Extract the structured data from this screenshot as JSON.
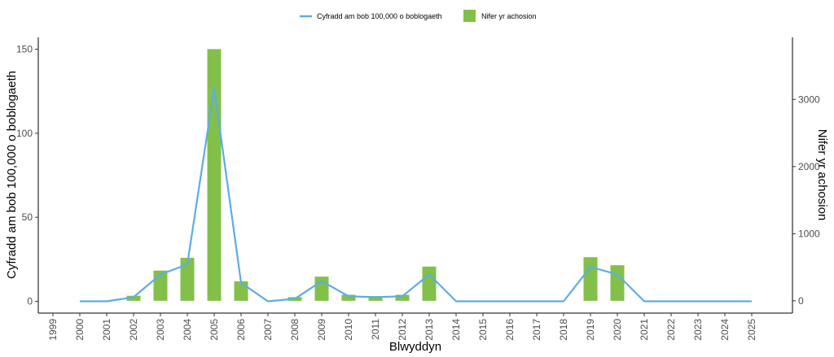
{
  "chart_data": {
    "type": "bar+line",
    "colors": {
      "bars": "#82c04a",
      "line": "#5dade2",
      "axis": "#000000"
    },
    "categories": [
      "1999",
      "2000",
      "2001",
      "2002",
      "2003",
      "2004",
      "2005",
      "2006",
      "2007",
      "2008",
      "2009",
      "2010",
      "2011",
      "2012",
      "2013",
      "2014",
      "2015",
      "2016",
      "2017",
      "2018",
      "2019",
      "2020",
      "2021",
      "2022",
      "2023",
      "2024",
      "2025"
    ],
    "series": [
      {
        "name": "Nifer yr achosion",
        "kind": "bar",
        "axis": "right",
        "values": [
          0,
          0,
          0,
          75,
          450,
          640,
          3750,
          290,
          0,
          55,
          360,
          90,
          70,
          90,
          510,
          0,
          0,
          0,
          0,
          0,
          650,
          530,
          0,
          0,
          0,
          0,
          0
        ]
      },
      {
        "name": "Cyfradd am bob 100,000 o boblogaeth",
        "kind": "line",
        "axis": "left",
        "values": [
          null,
          0,
          0,
          2.5,
          16,
          22,
          127,
          11,
          0,
          1.5,
          12,
          3,
          2.5,
          3,
          16,
          0,
          0,
          0,
          0,
          0,
          20.5,
          16,
          0,
          0,
          0,
          0,
          0
        ]
      }
    ],
    "xlabel": "Blwyddyn",
    "ylabel": "Cyfradd am bob 100,000 o boblogaeth",
    "y2label": "Nifer yr achosion",
    "ylim": [
      -7,
      157
    ],
    "yticks": [
      0,
      50,
      100,
      150
    ],
    "y2lim": [
      -183,
      3924
    ],
    "y2ticks": [
      0,
      1000,
      2000,
      3000
    ],
    "legend_position": "top",
    "grid": false
  }
}
